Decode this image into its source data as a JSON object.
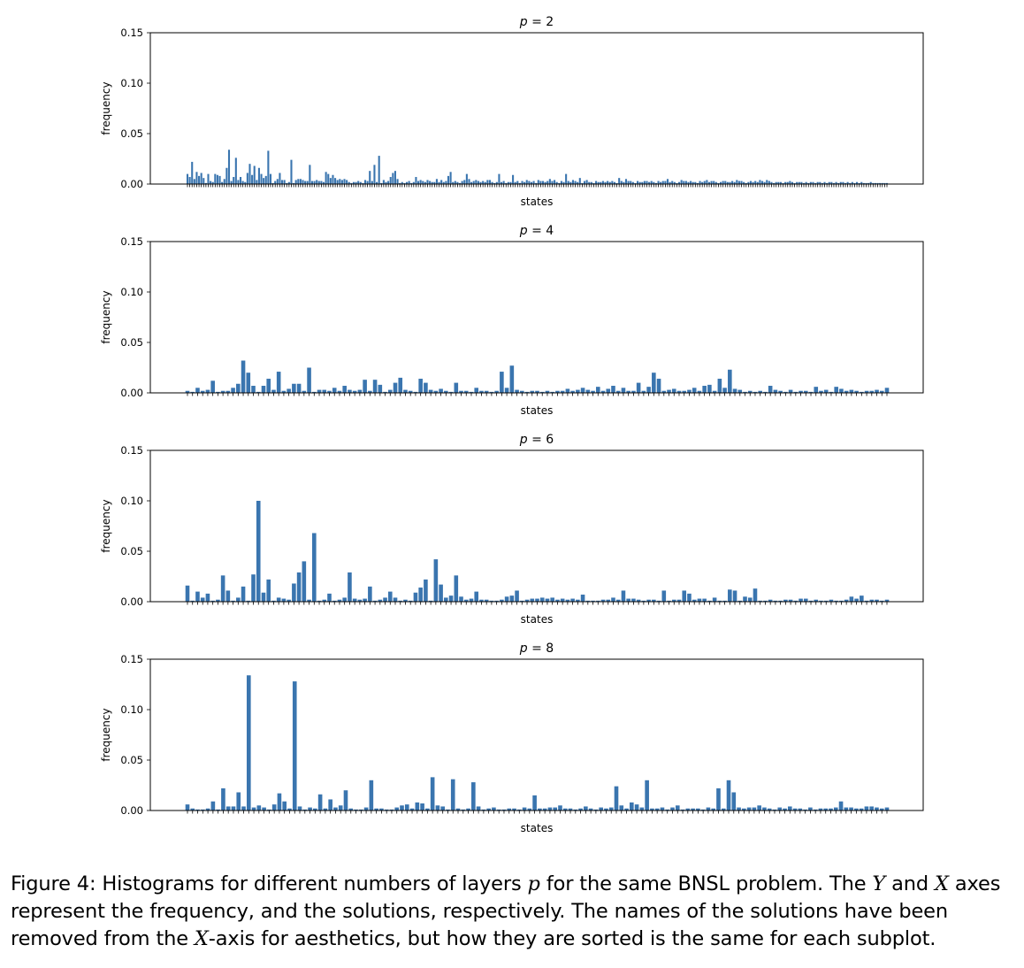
{
  "chart_data": [
    {
      "type": "bar",
      "title_var": "p",
      "title_value": "2",
      "xlabel": "states",
      "ylabel": "frequency",
      "ylim": [
        0,
        0.15
      ],
      "yticks": [
        "0.00",
        "0.05",
        "0.10",
        "0.15"
      ],
      "xtick_labels_shown": false,
      "color": "#3a75af",
      "values": [
        0.01,
        0.007,
        0.022,
        0.005,
        0.012,
        0.008,
        0.011,
        0.006,
        0.001,
        0.01,
        0.003,
        0.002,
        0.01,
        0.009,
        0.008,
        0.002,
        0.005,
        0.016,
        0.034,
        0.003,
        0.007,
        0.026,
        0.004,
        0.007,
        0.003,
        0.002,
        0.011,
        0.02,
        0.009,
        0.018,
        0.004,
        0.016,
        0.01,
        0.006,
        0.008,
        0.033,
        0.01,
        0.001,
        0.003,
        0.005,
        0.011,
        0.004,
        0.004,
        0.001,
        0.002,
        0.024,
        0.001,
        0.004,
        0.005,
        0.005,
        0.004,
        0.003,
        0.003,
        0.019,
        0.003,
        0.003,
        0.004,
        0.003,
        0.003,
        0.002,
        0.012,
        0.01,
        0.006,
        0.009,
        0.006,
        0.004,
        0.005,
        0.004,
        0.005,
        0.004,
        0.002,
        0.001,
        0.002,
        0.002,
        0.003,
        0.002,
        0.001,
        0.004,
        0.003,
        0.013,
        0.003,
        0.019,
        0.002,
        0.028,
        0.001,
        0.004,
        0.002,
        0.003,
        0.007,
        0.011,
        0.013,
        0.005,
        0.001,
        0.002,
        0.001,
        0.002,
        0.003,
        0.001,
        0.002,
        0.007,
        0.003,
        0.004,
        0.003,
        0.002,
        0.004,
        0.003,
        0.002,
        0.002,
        0.005,
        0.002,
        0.004,
        0.002,
        0.003,
        0.008,
        0.012,
        0.002,
        0.003,
        0.002,
        0.001,
        0.003,
        0.004,
        0.01,
        0.005,
        0.002,
        0.003,
        0.004,
        0.003,
        0.002,
        0.003,
        0.002,
        0.004,
        0.004,
        0.002,
        0.001,
        0.002,
        0.01,
        0.002,
        0.003,
        0.001,
        0.002,
        0.002,
        0.009,
        0.002,
        0.003,
        0.001,
        0.003,
        0.002,
        0.004,
        0.003,
        0.002,
        0.003,
        0.001,
        0.004,
        0.003,
        0.003,
        0.002,
        0.003,
        0.005,
        0.003,
        0.004,
        0.002,
        0.001,
        0.003,
        0.002,
        0.01,
        0.003,
        0.002,
        0.004,
        0.003,
        0.002,
        0.006,
        0.001,
        0.003,
        0.004,
        0.002,
        0.002,
        0.001,
        0.003,
        0.002,
        0.002,
        0.003,
        0.002,
        0.003,
        0.002,
        0.003,
        0.002,
        0.001,
        0.006,
        0.003,
        0.002,
        0.005,
        0.003,
        0.003,
        0.002,
        0.001,
        0.003,
        0.002,
        0.002,
        0.003,
        0.003,
        0.002,
        0.003,
        0.002,
        0.001,
        0.003,
        0.002,
        0.003,
        0.003,
        0.005,
        0.002,
        0.003,
        0.002,
        0.001,
        0.002,
        0.004,
        0.003,
        0.003,
        0.002,
        0.003,
        0.002,
        0.002,
        0.001,
        0.003,
        0.002,
        0.003,
        0.004,
        0.002,
        0.003,
        0.003,
        0.002,
        0.001,
        0.002,
        0.003,
        0.003,
        0.002,
        0.002,
        0.003,
        0.002,
        0.004,
        0.003,
        0.003,
        0.002,
        0.001,
        0.002,
        0.003,
        0.002,
        0.003,
        0.002,
        0.004,
        0.003,
        0.002,
        0.004,
        0.003,
        0.002,
        0.001,
        0.002,
        0.002,
        0.002,
        0.001,
        0.002,
        0.002,
        0.003,
        0.002,
        0.001,
        0.002,
        0.002,
        0.002,
        0.001,
        0.002,
        0.001,
        0.002,
        0.002,
        0.001,
        0.002,
        0.002,
        0.001,
        0.002,
        0.001,
        0.002,
        0.002,
        0.001,
        0.002,
        0.001,
        0.002,
        0.002,
        0.001,
        0.002,
        0.001,
        0.002,
        0.001,
        0.002,
        0.001,
        0.002,
        0.001,
        0.001,
        0.001,
        0.002,
        0.001,
        0.001,
        0.001,
        0.001,
        0.001,
        0.001,
        0.001
      ]
    },
    {
      "type": "bar",
      "title_var": "p",
      "title_value": "4",
      "xlabel": "states",
      "ylabel": "frequency",
      "ylim": [
        0,
        0.15
      ],
      "yticks": [
        "0.00",
        "0.05",
        "0.10",
        "0.15"
      ],
      "xtick_labels_shown": false,
      "color": "#3a75af",
      "values": [
        0.002,
        0.001,
        0.005,
        0.002,
        0.003,
        0.012,
        0.001,
        0.002,
        0.002,
        0.005,
        0.009,
        0.032,
        0.02,
        0.007,
        0.001,
        0.007,
        0.014,
        0.003,
        0.021,
        0.002,
        0.004,
        0.009,
        0.009,
        0.002,
        0.025,
        0.001,
        0.003,
        0.003,
        0.002,
        0.005,
        0.002,
        0.007,
        0.003,
        0.002,
        0.003,
        0.013,
        0.002,
        0.013,
        0.008,
        0.001,
        0.003,
        0.01,
        0.015,
        0.003,
        0.002,
        0.001,
        0.014,
        0.01,
        0.003,
        0.002,
        0.004,
        0.002,
        0.001,
        0.01,
        0.002,
        0.002,
        0.001,
        0.005,
        0.002,
        0.002,
        0.001,
        0.002,
        0.021,
        0.005,
        0.027,
        0.003,
        0.002,
        0.001,
        0.002,
        0.002,
        0.001,
        0.002,
        0.001,
        0.002,
        0.002,
        0.004,
        0.002,
        0.003,
        0.005,
        0.003,
        0.002,
        0.006,
        0.002,
        0.004,
        0.007,
        0.002,
        0.005,
        0.002,
        0.002,
        0.01,
        0.002,
        0.006,
        0.02,
        0.014,
        0.002,
        0.003,
        0.004,
        0.002,
        0.002,
        0.003,
        0.005,
        0.002,
        0.007,
        0.008,
        0.002,
        0.014,
        0.005,
        0.023,
        0.004,
        0.003,
        0.001,
        0.002,
        0.001,
        0.002,
        0.001,
        0.007,
        0.003,
        0.002,
        0.001,
        0.003,
        0.001,
        0.002,
        0.002,
        0.001,
        0.006,
        0.002,
        0.003,
        0.001,
        0.006,
        0.004,
        0.002,
        0.003,
        0.002,
        0.001,
        0.002,
        0.002,
        0.003,
        0.002,
        0.005
      ]
    },
    {
      "type": "bar",
      "title_var": "p",
      "title_value": "6",
      "xlabel": "states",
      "ylabel": "frequency",
      "ylim": [
        0,
        0.15
      ],
      "yticks": [
        "0.00",
        "0.05",
        "0.10",
        "0.15"
      ],
      "xtick_labels_shown": false,
      "color": "#3a75af",
      "values": [
        0.016,
        0.001,
        0.01,
        0.004,
        0.008,
        0.001,
        0.002,
        0.026,
        0.011,
        0.001,
        0.004,
        0.015,
        0.001,
        0.027,
        0.1,
        0.009,
        0.022,
        0.001,
        0.004,
        0.003,
        0.002,
        0.018,
        0.029,
        0.04,
        0.002,
        0.068,
        0.001,
        0.002,
        0.008,
        0.001,
        0.002,
        0.004,
        0.029,
        0.003,
        0.002,
        0.003,
        0.015,
        0.001,
        0.002,
        0.004,
        0.01,
        0.004,
        0.001,
        0.002,
        0.001,
        0.009,
        0.014,
        0.022,
        0.001,
        0.042,
        0.017,
        0.004,
        0.006,
        0.026,
        0.005,
        0.002,
        0.003,
        0.01,
        0.002,
        0.002,
        0.001,
        0.001,
        0.002,
        0.005,
        0.006,
        0.011,
        0.001,
        0.002,
        0.003,
        0.003,
        0.004,
        0.003,
        0.004,
        0.002,
        0.003,
        0.002,
        0.003,
        0.002,
        0.007,
        0.001,
        0.001,
        0.001,
        0.002,
        0.002,
        0.004,
        0.002,
        0.011,
        0.003,
        0.003,
        0.002,
        0.001,
        0.002,
        0.002,
        0.001,
        0.011,
        0.001,
        0.002,
        0.002,
        0.011,
        0.008,
        0.002,
        0.003,
        0.003,
        0.001,
        0.004,
        0.001,
        0.001,
        0.012,
        0.011,
        0.001,
        0.005,
        0.004,
        0.013,
        0.001,
        0.001,
        0.002,
        0.001,
        0.001,
        0.002,
        0.002,
        0.001,
        0.003,
        0.003,
        0.001,
        0.002,
        0.001,
        0.001,
        0.002,
        0.001,
        0.001,
        0.002,
        0.005,
        0.003,
        0.006,
        0.001,
        0.002,
        0.002,
        0.001,
        0.002
      ]
    },
    {
      "type": "bar",
      "title_var": "p",
      "title_value": "8",
      "xlabel": "states",
      "ylabel": "frequency",
      "ylim": [
        0,
        0.15
      ],
      "yticks": [
        "0.00",
        "0.05",
        "0.10",
        "0.15"
      ],
      "xtick_labels_shown": false,
      "color": "#3a75af",
      "values": [
        0.006,
        0.002,
        0.001,
        0.001,
        0.002,
        0.009,
        0.001,
        0.022,
        0.004,
        0.004,
        0.018,
        0.004,
        0.134,
        0.003,
        0.005,
        0.003,
        0.001,
        0.006,
        0.017,
        0.009,
        0.002,
        0.128,
        0.004,
        0.001,
        0.003,
        0.002,
        0.016,
        0.002,
        0.011,
        0.003,
        0.005,
        0.02,
        0.002,
        0.001,
        0.001,
        0.003,
        0.03,
        0.002,
        0.002,
        0.001,
        0.001,
        0.003,
        0.005,
        0.006,
        0.002,
        0.008,
        0.007,
        0.002,
        0.033,
        0.005,
        0.004,
        0.001,
        0.031,
        0.002,
        0.001,
        0.002,
        0.028,
        0.004,
        0.001,
        0.002,
        0.003,
        0.001,
        0.001,
        0.002,
        0.002,
        0.001,
        0.003,
        0.002,
        0.015,
        0.002,
        0.002,
        0.003,
        0.003,
        0.005,
        0.002,
        0.002,
        0.001,
        0.002,
        0.004,
        0.002,
        0.001,
        0.003,
        0.002,
        0.003,
        0.024,
        0.005,
        0.002,
        0.008,
        0.006,
        0.003,
        0.03,
        0.002,
        0.002,
        0.003,
        0.001,
        0.003,
        0.005,
        0.001,
        0.002,
        0.002,
        0.002,
        0.001,
        0.003,
        0.002,
        0.022,
        0.002,
        0.03,
        0.018,
        0.003,
        0.002,
        0.003,
        0.003,
        0.005,
        0.003,
        0.002,
        0.001,
        0.003,
        0.002,
        0.004,
        0.002,
        0.002,
        0.001,
        0.003,
        0.001,
        0.002,
        0.002,
        0.002,
        0.003,
        0.009,
        0.003,
        0.003,
        0.002,
        0.002,
        0.004,
        0.004,
        0.003,
        0.002,
        0.003
      ]
    }
  ],
  "caption": {
    "part1": "Figure 4: Histograms for different numbers of layers ",
    "var_p": "p",
    "part2": " for the same BNSL problem. The ",
    "var_y": "Y",
    "part3": " and ",
    "var_x": "X",
    "part4": " axes represent the frequency, and the solutions, respectively. The names of the solutions have been removed from the ",
    "var_x2": "X",
    "part5": "-axis for aesthetics, but how they are sorted is the same for each subplot."
  }
}
